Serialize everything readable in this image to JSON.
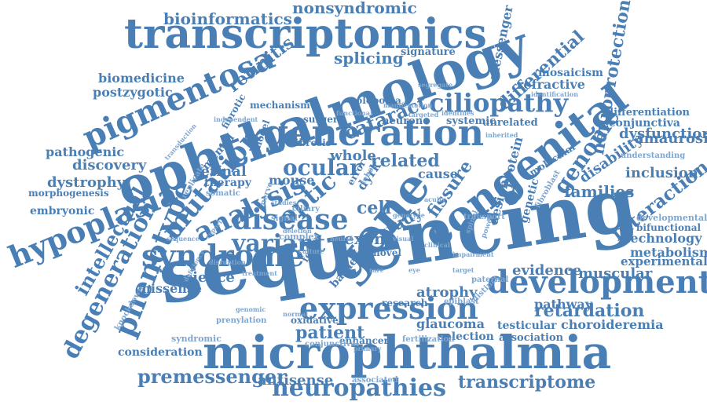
{
  "palette": {
    "primary": "#4a7fb5",
    "secondary": "#7ea6cf",
    "background": "#ffffff"
  },
  "words": [
    "sequencing",
    "microphthalmia",
    "ophthalmology",
    "transcriptomics",
    "gene",
    "congenital",
    "generation",
    "development",
    "expression",
    "syndrome",
    "hypoplasia",
    "phenotype",
    "neuropathies",
    "pigmentosa",
    "mutation",
    "analysis",
    "disease",
    "variant",
    "ciliopathy",
    "degeneration",
    "intellectual",
    "premessenger",
    "transcriptome",
    "retardation",
    "genome",
    "interaction",
    "neuroprotection",
    "ocular",
    "optic",
    "cataract",
    "bioinformatics",
    "nonsyndromic",
    "splicing",
    "retinitis",
    "biomedicine",
    "postzygotic",
    "differential",
    "messenger",
    "refractive",
    "mosaicism",
    "patient",
    "exon",
    "cell",
    "study",
    "fissure",
    "related",
    "whole",
    "retinal",
    "mouse",
    "discovery",
    "dystrophy",
    "pathogenic",
    "families",
    "disability",
    "amaurosis",
    "dysfunction",
    "conjunctiva",
    "differentiation",
    "inclusion",
    "technology",
    "metabolism",
    "experimental",
    "muscular",
    "evidence",
    "atrophy",
    "glaucoma",
    "antisense",
    "science",
    "missense",
    "embryonic",
    "morphogenesis",
    "signature",
    "coloboma",
    "mechanism",
    "surgery",
    "neuron",
    "systemic",
    "unrelated",
    "cause",
    "protein",
    "design",
    "genetic",
    "molecular",
    "fibroblast",
    "developmental",
    "bifunctional",
    "understanding",
    "pathway",
    "choroideremia",
    "testicular",
    "association",
    "selection",
    "enhancer",
    "oxidative",
    "consideration",
    "fibrosis",
    "therapy",
    "fibrotic",
    "mental",
    "model",
    "error",
    "dyrk",
    "lebe",
    "motor",
    "novel",
    "research",
    "bardet",
    "foveal",
    "complex",
    "syndromic",
    "knockdown",
    "prenylation",
    "conjunctival",
    "associated",
    "fertilization",
    "transport",
    "paternal",
    "epiblast",
    "distinct",
    "ciliary",
    "signal",
    "replicate",
    "somatic",
    "nerve",
    "functional",
    "segregate",
    "identification",
    "independent",
    "manifestation",
    "identifies",
    "targeted",
    "inherited",
    "spinal",
    "power",
    "treatment",
    "disruption",
    "deficiency",
    "report",
    "studies",
    "transduction",
    "acuity",
    "genotype",
    "impairment",
    "sequence",
    "culture",
    "deletion",
    "target",
    "primary",
    "normal",
    "genomic",
    "neural",
    "visual",
    "clinical",
    "eye",
    "rare",
    "lens",
    "cornea",
    "iris",
    "retina"
  ]
}
